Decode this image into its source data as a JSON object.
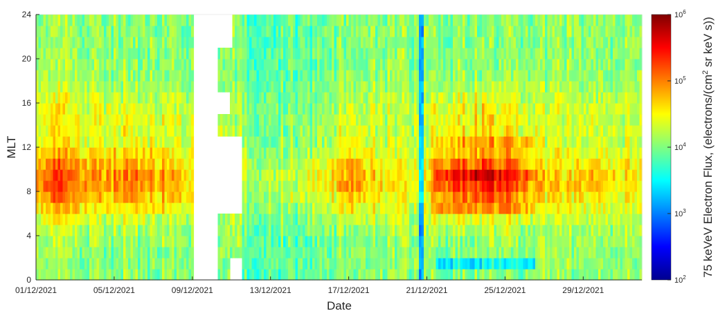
{
  "chart_data": {
    "type": "heatmap",
    "title": "",
    "xlabel": "Date",
    "ylabel": "MLT",
    "colorbar_label_parts": [
      "75 keVeV Electron Flux, (electrons/(cm",
      "2",
      " sr keV s))"
    ],
    "x_start": "2021-12-01",
    "x_end": "2022-01-01",
    "x_ticks": [
      "01/12/2021",
      "05/12/2021",
      "09/12/2021",
      "13/12/2021",
      "17/12/2021",
      "21/12/2021",
      "25/12/2021",
      "29/12/2021"
    ],
    "y_range": [
      0,
      24
    ],
    "y_ticks": [
      "0",
      "4",
      "8",
      "12",
      "16",
      "20",
      "24"
    ],
    "colorbar": {
      "scale": "log",
      "range": [
        100,
        1000000
      ],
      "ticks": [
        {
          "base": "10",
          "exp": "2"
        },
        {
          "base": "10",
          "exp": "3"
        },
        {
          "base": "10",
          "exp": "4"
        },
        {
          "base": "10",
          "exp": "5"
        },
        {
          "base": "10",
          "exp": "6"
        }
      ],
      "colormap": "jet"
    },
    "data_gaps": [
      {
        "from": "2021-12-09",
        "to": "2021-12-10.2"
      },
      {
        "from": "2021-12-10.2",
        "to": "2021-12-11.5",
        "note": "partial"
      }
    ],
    "flux_log10_profile": {
      "description": "log10 flux by day (keyframes, day offset from 01/12) and MLT hour",
      "days": [
        0,
        1,
        2,
        3,
        4,
        5,
        6,
        7,
        8,
        11.5,
        13,
        15,
        16,
        17,
        18,
        19,
        20,
        20.5,
        21,
        22,
        23,
        24,
        25,
        26,
        27,
        28,
        29,
        30,
        31
      ],
      "mlt": [
        0,
        2,
        4,
        6,
        8,
        10,
        12,
        14,
        16,
        18,
        20,
        22,
        24
      ]
    }
  }
}
